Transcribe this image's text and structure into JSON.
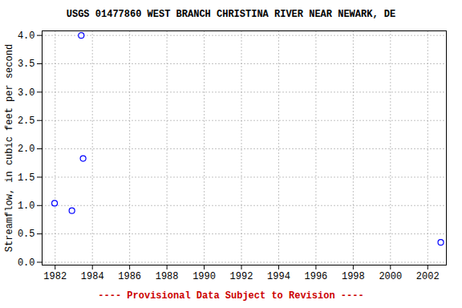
{
  "chart_data": {
    "type": "scatter",
    "title": "USGS 01477860 WEST BRANCH CHRISTINA RIVER NEAR NEWARK, DE",
    "y_label": "Streamflow, in cubic feet per second",
    "caption": "---- Provisional Data Subject to Revision ----",
    "x": [
      1981.97,
      1982.9,
      1983.4,
      1983.5,
      2002.7
    ],
    "values": [
      1.04,
      0.91,
      4.0,
      1.83,
      0.35
    ],
    "color": "#0000ff",
    "marker": "circle-open",
    "xlim": [
      1981.3,
      2003.0
    ],
    "xticks": [
      1982,
      1984,
      1986,
      1988,
      1990,
      1992,
      1994,
      1996,
      1998,
      2000,
      2002
    ],
    "ylim": [
      -0.05,
      4.08
    ],
    "yticks": [
      {
        "value": 0,
        "label": "0.0"
      },
      {
        "value": 0.5,
        "label": "0.5"
      },
      {
        "value": 1,
        "label": "1.0"
      },
      {
        "value": 1.5,
        "label": "1.5"
      },
      {
        "value": 2,
        "label": "2.0"
      },
      {
        "value": 2.5,
        "label": "2.5"
      },
      {
        "value": 3,
        "label": "3.0"
      },
      {
        "value": 3.5,
        "label": "3.5"
      },
      {
        "value": 4,
        "label": "4.0"
      }
    ],
    "grid": true
  }
}
